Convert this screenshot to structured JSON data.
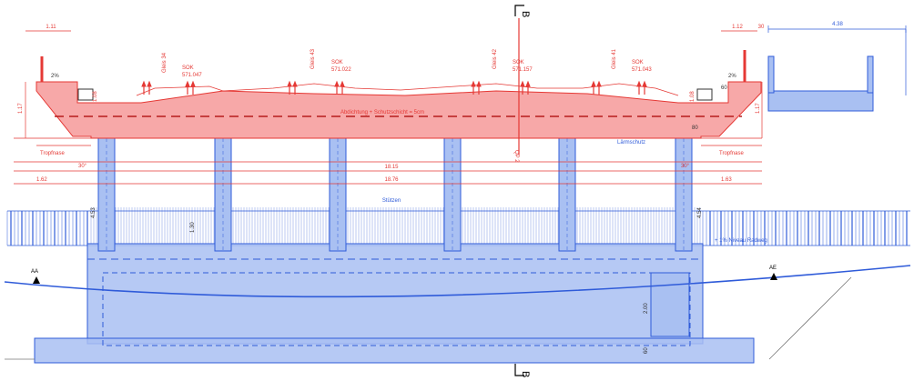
{
  "section_mark": {
    "letter": "B"
  },
  "dims_top": {
    "left_cantilever": "1.11",
    "right_cantilever": "1.12",
    "right_small": "30",
    "inset_width": "4.38"
  },
  "slope": {
    "left": "2%",
    "right": "2%"
  },
  "tracks": [
    {
      "name": "Gleis 34",
      "sok_label": "SOK",
      "sok_value": "571.047"
    },
    {
      "name": "Gleis 43",
      "sok_label": "SOK",
      "sok_value": "571.022"
    },
    {
      "name": "Gleis 42",
      "sok_label": "SOK",
      "sok_value": "571.157"
    },
    {
      "name": "Gleis 41",
      "sok_label": "SOK",
      "sok_value": "571.043"
    }
  ],
  "dims_vertical": {
    "left_outer": "1.17",
    "left_inner": "1.08",
    "right_inner": "1.08",
    "right_outer": "1.17",
    "right_small": "60",
    "left_small": "80"
  },
  "sealing_note": "Abdichtung + Schutzschicht = 5cm",
  "axis_label": "QP 2",
  "noise_barrier": "Lärmschutz",
  "drip": {
    "left": "Tropfnase",
    "right": "Tropfnase"
  },
  "dims_horizontal": {
    "total_inner": "18.15",
    "total_outer": "18.76",
    "left_edge": "1.62",
    "right_edge": "1.63"
  },
  "angles": {
    "left": "30°",
    "right": "30°"
  },
  "columns_label": "Stützen",
  "heights": {
    "left": "4.53",
    "right": "4.54",
    "inner": "1.30"
  },
  "bike_path": "+ 1% Niveau Radweg",
  "abutments": {
    "left": "AA",
    "right": "AE"
  },
  "foundation": {
    "height": "2.00",
    "base": "60"
  },
  "colors": {
    "red_line": "#e53935",
    "red_fill": "#f7a8a8",
    "blue_line": "#2f5bd9",
    "blue_fill": "#a9c0f2"
  }
}
